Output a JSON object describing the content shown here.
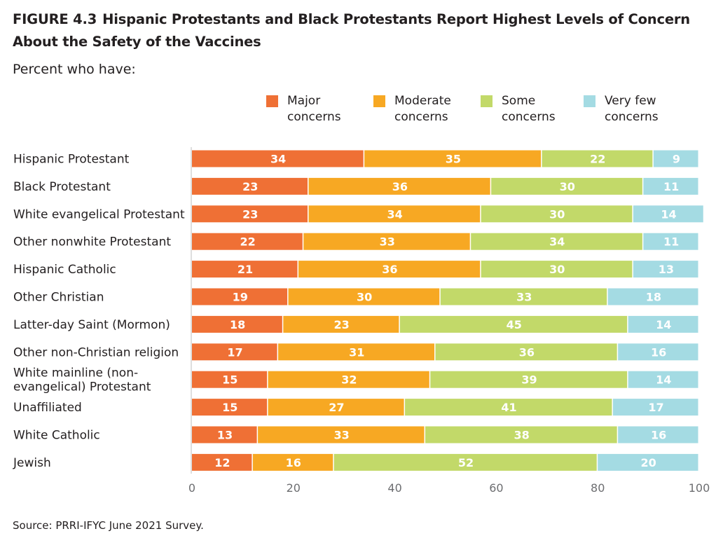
{
  "header": {
    "figure_label": "FIGURE 4.3",
    "title": "Hispanic Protestants and Black Protestants Report Highest Levels of Concern About the Safety of the Vaccines",
    "subtitle": "Percent who have:"
  },
  "source": "Source: PRRI-IFYC June 2021 Survey.",
  "colors": {
    "major": "#ef7035",
    "moderate": "#f7a823",
    "some": "#c2d969",
    "very_few": "#a4dbe3",
    "axis": "#bdbdbd",
    "label_text": "#ffffff"
  },
  "chart_data": {
    "type": "bar",
    "orientation": "horizontal",
    "stacked": true,
    "legend_position": "top-right",
    "grid": false,
    "xlim": [
      0,
      100
    ],
    "xticks": [
      0,
      20,
      40,
      60,
      80,
      100
    ],
    "categories": [
      "Hispanic Protestant",
      "Black Protestant",
      "White evangelical Protestant",
      "Other nonwhite Protestant",
      "Hispanic Catholic",
      "Other Christian",
      "Latter-day Saint (Mormon)",
      "Other non-Christian religion",
      "White mainline (non-evangelical) Protestant",
      "Unaffiliated",
      "White Catholic",
      "Jewish"
    ],
    "series": [
      {
        "name": "Major concerns",
        "color": "#ef7035",
        "values": [
          34,
          23,
          23,
          22,
          21,
          19,
          18,
          17,
          15,
          15,
          13,
          12
        ]
      },
      {
        "name": "Moderate concerns",
        "color": "#f7a823",
        "values": [
          35,
          36,
          34,
          33,
          36,
          30,
          23,
          31,
          32,
          27,
          33,
          16
        ]
      },
      {
        "name": "Some concerns",
        "color": "#c2d969",
        "values": [
          22,
          30,
          30,
          34,
          30,
          33,
          45,
          36,
          39,
          41,
          38,
          52
        ]
      },
      {
        "name": "Very few concerns",
        "color": "#a4dbe3",
        "values": [
          9,
          11,
          14,
          11,
          13,
          18,
          14,
          16,
          14,
          17,
          16,
          20
        ]
      }
    ]
  }
}
